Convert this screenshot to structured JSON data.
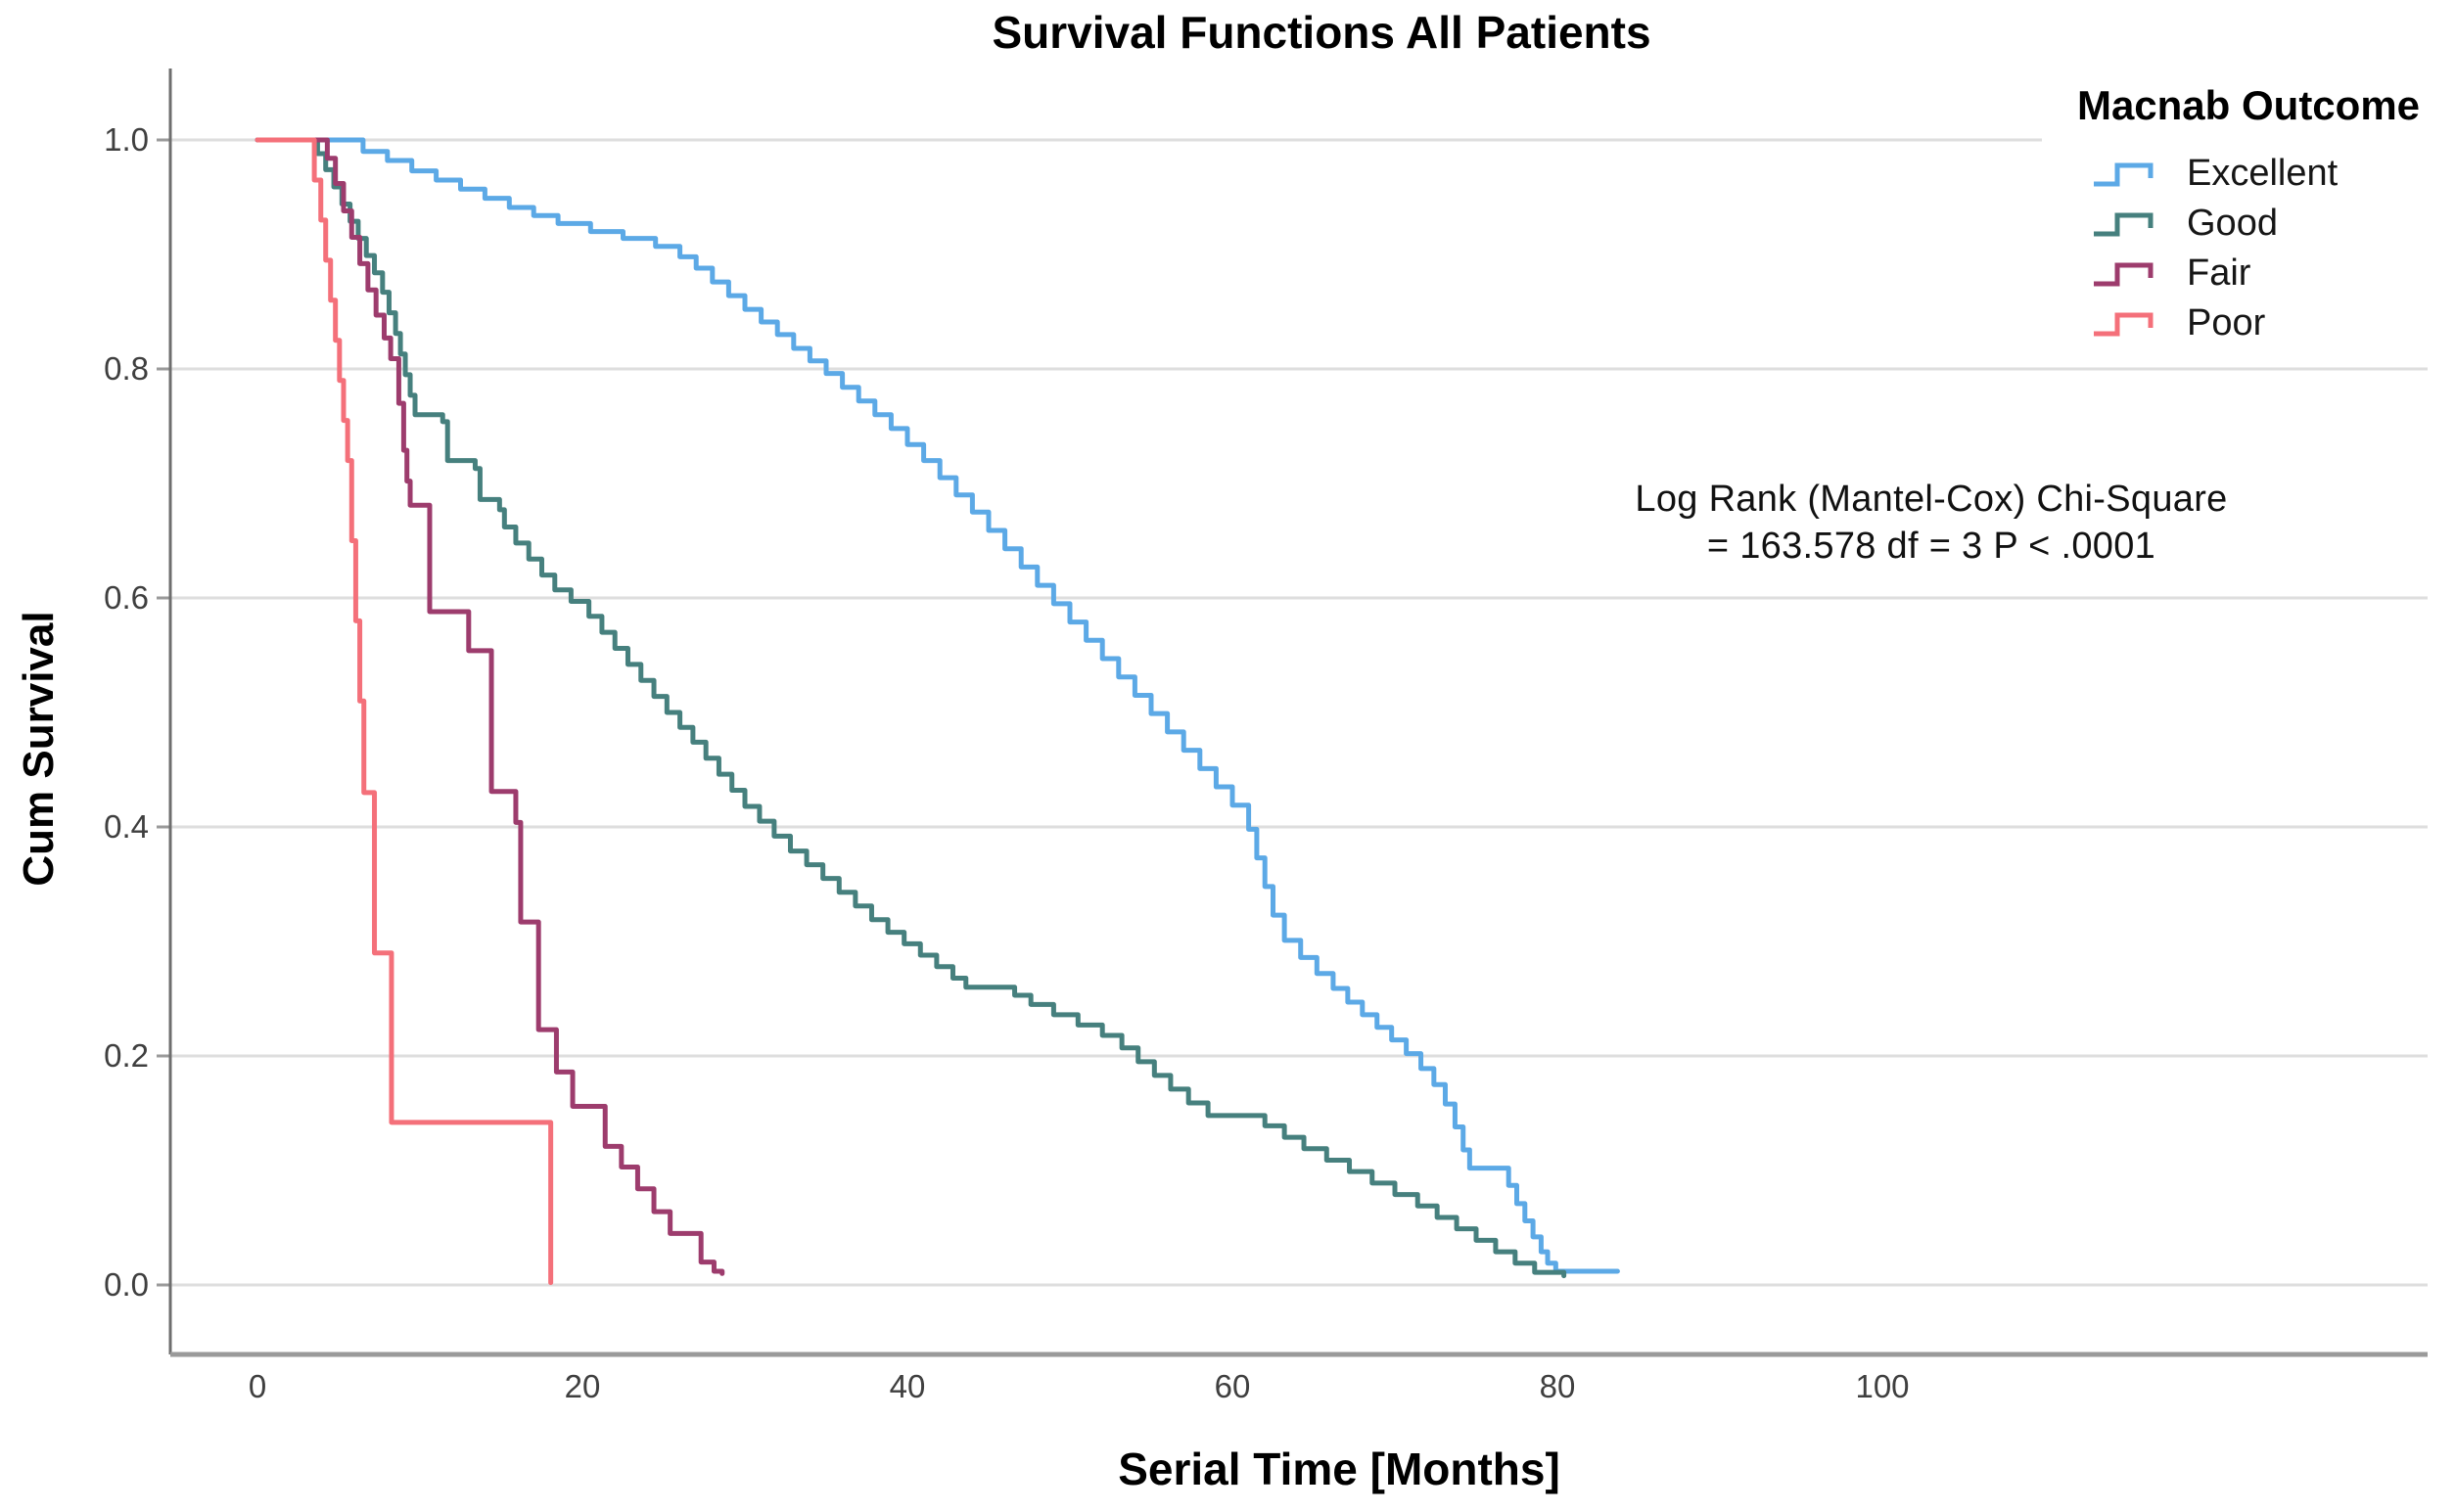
{
  "title": "Survival Functions All Patients",
  "axes": {
    "x_label": "Serial Time [Months]",
    "y_label": "Cum Survival",
    "x_tick_labels": [
      "0",
      "20",
      "40",
      "60",
      "80",
      "100"
    ],
    "y_tick_labels": [
      "1.0",
      "0.8",
      "0.6",
      "0.4",
      "0.2",
      "0.0"
    ]
  },
  "annotation": {
    "line1": "Log Rank (Mantel-Cox) Chi-Square",
    "line2": "= 163.578 df = 3 P < .0001"
  },
  "legend": {
    "title": "Macnab Outcome",
    "entries": [
      {
        "label": "Excellent",
        "color": "#5CA9E6"
      },
      {
        "label": "Good",
        "color": "#46807E"
      },
      {
        "label": "Fair",
        "color": "#9D3C6D"
      },
      {
        "label": "Poor",
        "color": "#F4707A"
      }
    ]
  },
  "colors": {
    "background": "#ffffff",
    "gridline": "#dedede",
    "axis": "#9a9a9a",
    "y_axis_line": "#6e6e6e",
    "tick_text": "#3f3f3f",
    "excellent": "#5CA9E6",
    "good": "#46807E",
    "fair": "#9D3C6D",
    "poor": "#F4707A"
  },
  "chart_data": {
    "type": "line",
    "subtype": "kaplan-meier-step",
    "title": "Survival Functions All Patients",
    "xlabel": "Serial Time [Months]",
    "ylabel": "Cum Survival",
    "xlim": [
      0,
      100
    ],
    "ylim": [
      0.0,
      1.0
    ],
    "x_ticks": [
      0,
      20,
      40,
      60,
      80,
      100
    ],
    "y_ticks": [
      1.0,
      0.8,
      0.6,
      0.4,
      0.2,
      0.0
    ],
    "grid": true,
    "legend_position": "top-right",
    "annotation": "Log Rank (Mantel-Cox) Chi-Square = 163.578 df = 3 P < .0001",
    "series": [
      {
        "name": "Excellent",
        "color": "#5CA9E6",
        "points": [
          [
            0,
            1
          ],
          [
            5.5,
            1
          ],
          [
            6.5,
            0.99
          ],
          [
            8,
            0.982
          ],
          [
            9.5,
            0.973
          ],
          [
            11,
            0.965
          ],
          [
            12.5,
            0.957
          ],
          [
            14,
            0.949
          ],
          [
            15.5,
            0.941
          ],
          [
            17,
            0.934
          ],
          [
            18.5,
            0.927
          ],
          [
            20.5,
            0.92
          ],
          [
            22.5,
            0.914
          ],
          [
            24.5,
            0.907
          ],
          [
            26,
            0.898
          ],
          [
            27,
            0.888
          ],
          [
            28,
            0.876
          ],
          [
            29,
            0.864
          ],
          [
            30,
            0.852
          ],
          [
            31,
            0.841
          ],
          [
            32,
            0.83
          ],
          [
            33,
            0.818
          ],
          [
            34,
            0.807
          ],
          [
            35,
            0.796
          ],
          [
            36,
            0.784
          ],
          [
            37,
            0.772
          ],
          [
            38,
            0.76
          ],
          [
            39,
            0.748
          ],
          [
            40,
            0.734
          ],
          [
            41,
            0.72
          ],
          [
            42,
            0.705
          ],
          [
            43,
            0.69
          ],
          [
            44,
            0.675
          ],
          [
            45,
            0.659
          ],
          [
            46,
            0.643
          ],
          [
            47,
            0.627
          ],
          [
            48,
            0.611
          ],
          [
            49,
            0.595
          ],
          [
            50,
            0.579
          ],
          [
            51,
            0.563
          ],
          [
            52,
            0.547
          ],
          [
            53,
            0.531
          ],
          [
            54,
            0.515
          ],
          [
            55,
            0.499
          ],
          [
            56,
            0.483
          ],
          [
            57,
            0.467
          ],
          [
            58,
            0.451
          ],
          [
            59,
            0.435
          ],
          [
            60,
            0.419
          ],
          [
            61,
            0.398
          ],
          [
            61.5,
            0.373
          ],
          [
            62,
            0.348
          ],
          [
            62.5,
            0.323
          ],
          [
            63.2,
            0.301
          ],
          [
            64.2,
            0.286
          ],
          [
            65.2,
            0.272
          ],
          [
            66.2,
            0.259
          ],
          [
            67.1,
            0.247
          ],
          [
            68,
            0.236
          ],
          [
            68.9,
            0.225
          ],
          [
            69.8,
            0.214
          ],
          [
            70.7,
            0.202
          ],
          [
            71.6,
            0.189
          ],
          [
            72.4,
            0.175
          ],
          [
            73.1,
            0.158
          ],
          [
            73.7,
            0.138
          ],
          [
            74.2,
            0.118
          ],
          [
            74.6,
            0.102
          ],
          [
            77,
            0.087
          ],
          [
            77.5,
            0.071
          ],
          [
            78,
            0.056
          ],
          [
            78.5,
            0.042
          ],
          [
            79,
            0.029
          ],
          [
            79.4,
            0.019
          ],
          [
            79.9,
            0.012
          ],
          [
            83.7,
            0.012
          ]
        ]
      },
      {
        "name": "Good",
        "color": "#46807E",
        "points": [
          [
            0,
            1
          ],
          [
            3.2,
            1
          ],
          [
            3.7,
            0.988
          ],
          [
            4.2,
            0.974
          ],
          [
            4.7,
            0.959
          ],
          [
            5.2,
            0.944
          ],
          [
            5.7,
            0.929
          ],
          [
            6.2,
            0.914
          ],
          [
            6.7,
            0.899
          ],
          [
            7.2,
            0.884
          ],
          [
            7.7,
            0.867
          ],
          [
            8.1,
            0.849
          ],
          [
            8.5,
            0.831
          ],
          [
            8.8,
            0.813
          ],
          [
            9.1,
            0.795
          ],
          [
            9.4,
            0.777
          ],
          [
            9.7,
            0.76
          ],
          [
            11.4,
            0.754
          ],
          [
            11.7,
            0.72
          ],
          [
            13.4,
            0.713
          ],
          [
            13.7,
            0.686
          ],
          [
            14.9,
            0.677
          ],
          [
            15.2,
            0.662
          ],
          [
            15.9,
            0.648
          ],
          [
            16.7,
            0.634
          ],
          [
            17.5,
            0.62
          ],
          [
            18.3,
            0.607
          ],
          [
            19.3,
            0.597
          ],
          [
            20.4,
            0.584
          ],
          [
            21.2,
            0.57
          ],
          [
            22,
            0.556
          ],
          [
            22.8,
            0.542
          ],
          [
            23.6,
            0.528
          ],
          [
            24.4,
            0.514
          ],
          [
            25.2,
            0.5
          ],
          [
            26,
            0.487
          ],
          [
            26.8,
            0.474
          ],
          [
            27.6,
            0.46
          ],
          [
            28.4,
            0.446
          ],
          [
            29.2,
            0.432
          ],
          [
            30,
            0.418
          ],
          [
            30.9,
            0.405
          ],
          [
            31.8,
            0.392
          ],
          [
            32.8,
            0.379
          ],
          [
            33.8,
            0.367
          ],
          [
            34.8,
            0.355
          ],
          [
            35.8,
            0.343
          ],
          [
            36.8,
            0.331
          ],
          [
            37.8,
            0.319
          ],
          [
            38.8,
            0.308
          ],
          [
            39.8,
            0.298
          ],
          [
            40.8,
            0.288
          ],
          [
            41.8,
            0.278
          ],
          [
            42.8,
            0.268
          ],
          [
            43.6,
            0.26
          ],
          [
            46.6,
            0.253
          ],
          [
            47.6,
            0.245
          ],
          [
            49,
            0.236
          ],
          [
            50.5,
            0.227
          ],
          [
            52,
            0.218
          ],
          [
            53.2,
            0.207
          ],
          [
            54.2,
            0.195
          ],
          [
            55.2,
            0.183
          ],
          [
            56.2,
            0.171
          ],
          [
            57.3,
            0.159
          ],
          [
            58.5,
            0.148
          ],
          [
            62,
            0.139
          ],
          [
            63.2,
            0.129
          ],
          [
            64.4,
            0.119
          ],
          [
            65.8,
            0.109
          ],
          [
            67.2,
            0.099
          ],
          [
            68.6,
            0.089
          ],
          [
            70,
            0.079
          ],
          [
            71.4,
            0.069
          ],
          [
            72.6,
            0.059
          ],
          [
            73.8,
            0.049
          ],
          [
            75,
            0.039
          ],
          [
            76.2,
            0.029
          ],
          [
            77.4,
            0.019
          ],
          [
            78.6,
            0.011
          ],
          [
            80.4,
            0.008
          ]
        ]
      },
      {
        "name": "Fair",
        "color": "#9D3C6D",
        "points": [
          [
            0,
            1
          ],
          [
            3.8,
            1
          ],
          [
            4.3,
            0.984
          ],
          [
            4.8,
            0.962
          ],
          [
            5.3,
            0.938
          ],
          [
            5.8,
            0.915
          ],
          [
            6.3,
            0.892
          ],
          [
            6.8,
            0.869
          ],
          [
            7.3,
            0.847
          ],
          [
            7.8,
            0.827
          ],
          [
            8.2,
            0.809
          ],
          [
            8.7,
            0.77
          ],
          [
            9,
            0.729
          ],
          [
            9.2,
            0.702
          ],
          [
            9.4,
            0.681
          ],
          [
            10.6,
            0.588
          ],
          [
            13,
            0.554
          ],
          [
            14.4,
            0.431
          ],
          [
            15.9,
            0.404
          ],
          [
            16.2,
            0.317
          ],
          [
            17.3,
            0.223
          ],
          [
            18.4,
            0.186
          ],
          [
            19.4,
            0.156
          ],
          [
            21.4,
            0.121
          ],
          [
            22.4,
            0.103
          ],
          [
            23.4,
            0.084
          ],
          [
            24.4,
            0.064
          ],
          [
            25.4,
            0.045
          ],
          [
            27.3,
            0.02
          ],
          [
            28.1,
            0.012
          ],
          [
            28.6,
            0.01
          ]
        ]
      },
      {
        "name": "Poor",
        "color": "#F4707A",
        "points": [
          [
            0,
            1
          ],
          [
            3,
            1
          ],
          [
            3.5,
            0.965
          ],
          [
            3.9,
            0.93
          ],
          [
            4.2,
            0.895
          ],
          [
            4.5,
            0.86
          ],
          [
            4.8,
            0.825
          ],
          [
            5.05,
            0.79
          ],
          [
            5.3,
            0.755
          ],
          [
            5.55,
            0.72
          ],
          [
            5.8,
            0.65
          ],
          [
            6.05,
            0.58
          ],
          [
            6.3,
            0.51
          ],
          [
            6.55,
            0.43
          ],
          [
            7.2,
            0.29
          ],
          [
            8.25,
            0.142
          ],
          [
            18,
            0.142
          ],
          [
            18.05,
            0.002
          ]
        ]
      }
    ]
  }
}
